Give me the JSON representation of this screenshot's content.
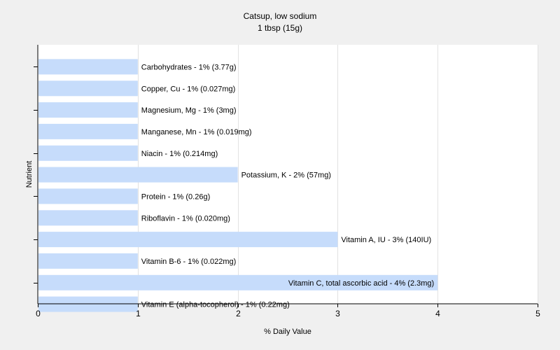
{
  "chart_data": {
    "type": "bar",
    "orientation": "horizontal",
    "title": "Catsup, low sodium",
    "subtitle": "1 tbsp (15g)",
    "xlabel": "% Daily Value",
    "ylabel": "Nutrient",
    "xlim": [
      0,
      5
    ],
    "xticks": [
      "0",
      "1",
      "2",
      "3",
      "4",
      "5"
    ],
    "grid": "vertical",
    "bar_color": "#c6dcfb",
    "categories": [
      "Carbohydrates",
      "Copper, Cu",
      "Magnesium, Mg",
      "Manganese, Mn",
      "Niacin",
      "Potassium, K",
      "Protein",
      "Riboflavin",
      "Vitamin A, IU",
      "Vitamin B-6",
      "Vitamin C, total ascorbic acid",
      "Vitamin E (alpha-tocopherol)"
    ],
    "values": [
      1,
      1,
      1,
      1,
      1,
      2,
      1,
      1,
      3,
      1,
      4,
      1
    ],
    "labels": [
      "Carbohydrates - 1% (3.77g)",
      "Copper, Cu - 1% (0.027mg)",
      "Magnesium, Mg - 1% (3mg)",
      "Manganese, Mn - 1% (0.019mg)",
      "Niacin - 1% (0.214mg)",
      "Potassium, K - 2% (57mg)",
      "Protein - 1% (0.26g)",
      "Riboflavin - 1% (0.020mg)",
      "Vitamin A, IU - 3% (140IU)",
      "Vitamin B-6 - 1% (0.022mg)",
      "Vitamin C, total ascorbic acid - 4% (2.3mg)",
      "Vitamin E (alpha-tocopherol) - 1% (0.22mg)"
    ]
  }
}
